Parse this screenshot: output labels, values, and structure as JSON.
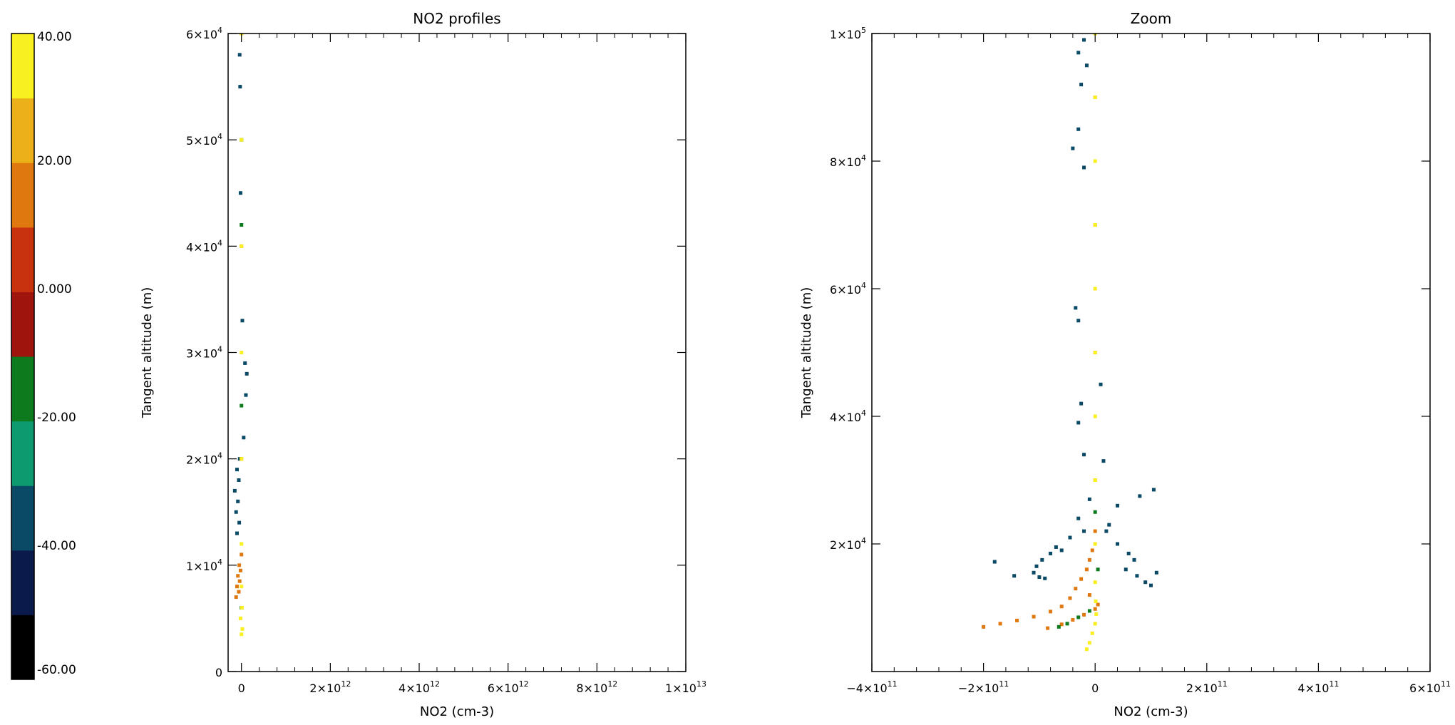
{
  "colorbar": {
    "labels": [
      "40.00",
      "20.00",
      "0.000",
      "-20.00",
      "-40.00",
      "-60.00"
    ],
    "range": [
      -60,
      40
    ],
    "colors": [
      "#000000",
      "#0a1a4a",
      "#0b4a66",
      "#0c9a6e",
      "#0e7a1e",
      "#a0140e",
      "#c8320e",
      "#e07810",
      "#ecb018",
      "#f8f020"
    ]
  },
  "chart_data": [
    {
      "type": "scatter",
      "title": "NO2 profiles",
      "xlabel": "NO2 (cm-3)",
      "ylabel": "Tangent altitude (m)",
      "xlim": [
        -300000000000.0,
        10000000000000.0
      ],
      "ylim": [
        0,
        60000
      ],
      "x_ticks": [
        {
          "value": 0,
          "mant": "0",
          "exp": ""
        },
        {
          "value": 2000000000000.0,
          "mant": "2×10",
          "exp": "12"
        },
        {
          "value": 4000000000000.0,
          "mant": "4×10",
          "exp": "12"
        },
        {
          "value": 6000000000000.0,
          "mant": "6×10",
          "exp": "12"
        },
        {
          "value": 8000000000000.0,
          "mant": "8×10",
          "exp": "12"
        },
        {
          "value": 10000000000000.0,
          "mant": "1×10",
          "exp": "13"
        }
      ],
      "y_ticks": [
        {
          "value": 0,
          "mant": "0",
          "exp": ""
        },
        {
          "value": 10000,
          "mant": "1×10",
          "exp": "4"
        },
        {
          "value": 20000,
          "mant": "2×10",
          "exp": "4"
        },
        {
          "value": 30000,
          "mant": "3×10",
          "exp": "4"
        },
        {
          "value": 40000,
          "mant": "4×10",
          "exp": "4"
        },
        {
          "value": 50000,
          "mant": "5×10",
          "exp": "4"
        },
        {
          "value": 60000,
          "mant": "6×10",
          "exp": "4"
        }
      ],
      "x_minor": 4,
      "y_minor": 0,
      "clip": true,
      "series": [
        {
          "color_value": -40,
          "points": [
            [
              -100000000000.0,
              13000
            ],
            [
              -50000000000.0,
              14000
            ],
            [
              -120000000000.0,
              15000
            ],
            [
              -80000000000.0,
              16000
            ],
            [
              -150000000000.0,
              17000
            ],
            [
              -60000000000.0,
              18000
            ],
            [
              -100000000000.0,
              19000
            ],
            [
              -40000000000.0,
              20000
            ],
            [
              50000000000.0,
              22000
            ],
            [
              100000000000.0,
              26000
            ],
            [
              120000000000.0,
              28000
            ],
            [
              80000000000.0,
              29000
            ],
            [
              20000000000.0,
              33000
            ],
            [
              -20000000000.0,
              45000
            ],
            [
              -30000000000.0,
              55000
            ],
            [
              -40000000000.0,
              58000
            ]
          ]
        },
        {
          "color_value": 10,
          "points": [
            [
              -120000000000.0,
              7000
            ],
            [
              -60000000000.0,
              7500
            ],
            [
              -100000000000.0,
              8000
            ],
            [
              -40000000000.0,
              8500
            ],
            [
              -80000000000.0,
              9000
            ],
            [
              -20000000000.0,
              9500
            ],
            [
              -50000000000.0,
              10000
            ],
            [
              0,
              11000
            ],
            [
              0,
              20000
            ],
            [
              0,
              40000
            ],
            [
              0,
              60000
            ]
          ]
        },
        {
          "color_value": -15,
          "points": [
            [
              0,
              6000
            ],
            [
              0,
              25000
            ],
            [
              0,
              42000
            ],
            [
              0,
              50000
            ]
          ]
        },
        {
          "color_value": 35,
          "points": [
            [
              0,
              3500
            ],
            [
              20000000000.0,
              4000
            ],
            [
              -20000000000.0,
              5000
            ],
            [
              10000000000.0,
              6000
            ],
            [
              0,
              8000
            ],
            [
              0,
              12000
            ],
            [
              0,
              20000
            ],
            [
              0,
              30000
            ],
            [
              0,
              40000
            ],
            [
              0,
              50000
            ],
            [
              0,
              60000
            ]
          ]
        }
      ]
    },
    {
      "type": "scatter",
      "title": "Zoom",
      "xlabel": "NO2 (cm-3)",
      "ylabel": "Tangent altitude (m)",
      "xlim": [
        -400000000000.0,
        600000000000.0
      ],
      "ylim": [
        0,
        100000
      ],
      "x_ticks": [
        {
          "value": -400000000000.0,
          "mant": "−4×10",
          "exp": "11"
        },
        {
          "value": -200000000000.0,
          "mant": "−2×10",
          "exp": "11"
        },
        {
          "value": 0,
          "mant": "0",
          "exp": ""
        },
        {
          "value": 200000000000.0,
          "mant": "2×10",
          "exp": "11"
        },
        {
          "value": 400000000000.0,
          "mant": "4×10",
          "exp": "11"
        },
        {
          "value": 600000000000.0,
          "mant": "6×10",
          "exp": "11"
        }
      ],
      "y_ticks": [
        {
          "value": 20000,
          "mant": "2×10",
          "exp": "4"
        },
        {
          "value": 40000,
          "mant": "4×10",
          "exp": "4"
        },
        {
          "value": 60000,
          "mant": "6×10",
          "exp": "4"
        },
        {
          "value": 80000,
          "mant": "8×10",
          "exp": "4"
        },
        {
          "value": 100000,
          "mant": "1×10",
          "exp": "5"
        }
      ],
      "x_minor": 4,
      "y_minor": 0,
      "clip": true,
      "series": [
        {
          "color_value": -40,
          "points": [
            [
              -20000000000.0,
              99000
            ],
            [
              -30000000000.0,
              97000
            ],
            [
              -15000000000.0,
              95000
            ],
            [
              -25000000000.0,
              92000
            ],
            [
              -30000000000.0,
              85000
            ],
            [
              -40000000000.0,
              82000
            ],
            [
              -20000000000.0,
              79000
            ],
            [
              -35000000000.0,
              57000
            ],
            [
              -30000000000.0,
              55000
            ],
            [
              -25000000000.0,
              42000
            ],
            [
              -30000000000.0,
              39000
            ],
            [
              10000000000.0,
              45000
            ],
            [
              15000000000.0,
              33000
            ],
            [
              -20000000000.0,
              34000
            ],
            [
              -10000000000.0,
              27000
            ],
            [
              -30000000000.0,
              24000
            ],
            [
              -20000000000.0,
              22000
            ],
            [
              -45000000000.0,
              21000
            ],
            [
              -60000000000.0,
              19000
            ],
            [
              -80000000000.0,
              18500
            ],
            [
              -95000000000.0,
              17500
            ],
            [
              -105000000000.0,
              16500
            ],
            [
              -110000000000.0,
              15500
            ],
            [
              -100000000000.0,
              14800
            ],
            [
              -90000000000.0,
              14600
            ],
            [
              -180000000000.0,
              17200
            ],
            [
              -145000000000.0,
              15000
            ],
            [
              -70000000000.0,
              19500
            ],
            [
              20000000000.0,
              22000
            ],
            [
              40000000000.0,
              20000
            ],
            [
              60000000000.0,
              18500
            ],
            [
              70000000000.0,
              17500
            ],
            [
              55000000000.0,
              16000
            ],
            [
              75000000000.0,
              15000
            ],
            [
              90000000000.0,
              14000
            ],
            [
              100000000000.0,
              13500
            ],
            [
              110000000000.0,
              15500
            ],
            [
              80000000000.0,
              27500
            ],
            [
              105000000000.0,
              28500
            ],
            [
              40000000000.0,
              26000
            ],
            [
              25000000000.0,
              23000
            ]
          ]
        },
        {
          "color_value": 10,
          "points": [
            [
              -200000000000.0,
              7000
            ],
            [
              -170000000000.0,
              7500
            ],
            [
              -140000000000.0,
              8000
            ],
            [
              -110000000000.0,
              8600
            ],
            [
              -80000000000.0,
              9400
            ],
            [
              -60000000000.0,
              10200
            ],
            [
              -45000000000.0,
              11500
            ],
            [
              -35000000000.0,
              13000
            ],
            [
              -25000000000.0,
              14500
            ],
            [
              -15000000000.0,
              16000
            ],
            [
              -10000000000.0,
              17500
            ],
            [
              -5000000000.0,
              19000
            ],
            [
              0,
              22000
            ],
            [
              0,
              30000
            ],
            [
              0,
              50000
            ],
            [
              0,
              70000
            ],
            [
              0,
              90000
            ],
            [
              0,
              100000
            ],
            [
              -85000000000.0,
              6800
            ],
            [
              -60000000000.0,
              7400
            ],
            [
              -40000000000.0,
              8100
            ],
            [
              -20000000000.0,
              8900
            ],
            [
              0,
              9800
            ],
            [
              5000000000.0,
              10500
            ],
            [
              -10000000000.0,
              12000
            ]
          ]
        },
        {
          "color_value": -15,
          "points": [
            [
              -65000000000.0,
              7000
            ],
            [
              -50000000000.0,
              7500
            ],
            [
              -30000000000.0,
              8500
            ],
            [
              -10000000000.0,
              9500
            ],
            [
              5000000000.0,
              16000
            ],
            [
              0,
              25000
            ]
          ]
        },
        {
          "color_value": 35,
          "points": [
            [
              -15000000000.0,
              3500
            ],
            [
              -10000000000.0,
              4500
            ],
            [
              -5000000000.0,
              6000
            ],
            [
              0,
              7500
            ],
            [
              2000000000.0,
              9000
            ],
            [
              1000000000.0,
              11000
            ],
            [
              0,
              14000
            ],
            [
              0,
              20000
            ],
            [
              0,
              30000
            ],
            [
              0,
              40000
            ],
            [
              0,
              50000
            ],
            [
              0,
              60000
            ],
            [
              0,
              70000
            ],
            [
              0,
              80000
            ],
            [
              0,
              90000
            ],
            [
              0,
              100000
            ]
          ]
        }
      ]
    }
  ]
}
